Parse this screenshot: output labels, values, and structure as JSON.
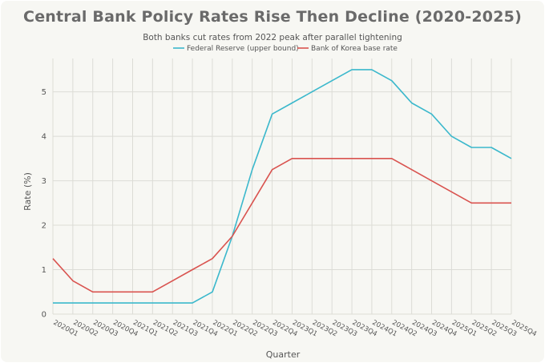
{
  "chart_data": {
    "type": "line",
    "title": "Central Bank Policy Rates Rise Then Decline (2020-2025)",
    "subtitle": "Both banks cut rates from 2022 peak after parallel tightening",
    "xlabel": "Quarter",
    "ylabel": "Rate (%)",
    "ylim": [
      0,
      5.75
    ],
    "yticks": [
      0,
      1,
      2,
      3,
      4,
      5
    ],
    "grid": true,
    "legend_position": "top-center",
    "categories": [
      "2020Q1",
      "2020Q2",
      "2020Q3",
      "2020Q4",
      "2021Q1",
      "2021Q2",
      "2021Q3",
      "2021Q4",
      "2022Q1",
      "2022Q2",
      "2022Q3",
      "2022Q4",
      "2023Q1",
      "2023Q2",
      "2023Q3",
      "2023Q4",
      "2024Q1",
      "2024Q2",
      "2024Q3",
      "2024Q4",
      "2025Q1",
      "2025Q2",
      "2025Q3",
      "2025Q4"
    ],
    "series": [
      {
        "name": "Federal Reserve (upper bound)",
        "color": "#3bb8cc",
        "values": [
          0.25,
          0.25,
          0.25,
          0.25,
          0.25,
          0.25,
          0.25,
          0.25,
          0.5,
          1.75,
          3.25,
          4.5,
          4.75,
          5.0,
          5.25,
          5.5,
          5.5,
          5.25,
          4.75,
          4.5,
          4.0,
          3.75,
          3.75,
          3.5
        ]
      },
      {
        "name": "Bank of Korea base rate",
        "color": "#d9534f",
        "values": [
          1.25,
          0.75,
          0.5,
          0.5,
          0.5,
          0.5,
          0.75,
          1.0,
          1.25,
          1.75,
          2.5,
          3.25,
          3.5,
          3.5,
          3.5,
          3.5,
          3.5,
          3.5,
          3.25,
          3.0,
          2.75,
          2.5,
          2.5,
          2.5
        ]
      }
    ]
  }
}
